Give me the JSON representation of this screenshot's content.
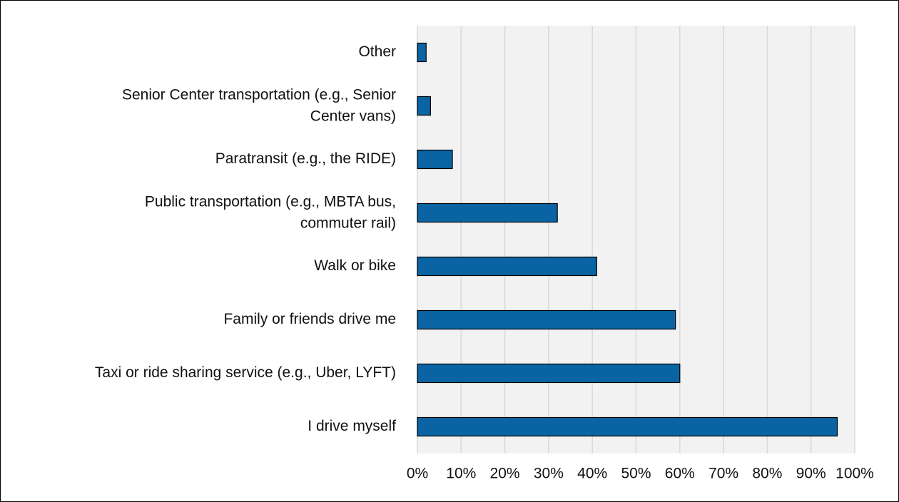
{
  "chart_data": {
    "type": "bar",
    "orientation": "horizontal",
    "categories": [
      "Other",
      [
        "Senior Center transportation (e.g., Senior",
        "Center vans)"
      ],
      "Paratransit (e.g., the RIDE)",
      [
        "Public transportation (e.g., MBTA bus,",
        "commuter rail)"
      ],
      "Walk or bike",
      "Family or friends drive me",
      "Taxi or ride sharing service (e.g., Uber, LYFT)",
      "I drive myself"
    ],
    "values": [
      2,
      3,
      8,
      32,
      41,
      59,
      60,
      96
    ],
    "color": "#0a64a4",
    "xlim": [
      0,
      100
    ],
    "xticks": [
      {
        "value": 0,
        "label": "0%"
      },
      {
        "value": 10,
        "label": "10%"
      },
      {
        "value": 20,
        "label": "20%"
      },
      {
        "value": 30,
        "label": "30%"
      },
      {
        "value": 40,
        "label": "40%"
      },
      {
        "value": 50,
        "label": "50%"
      },
      {
        "value": 60,
        "label": "60%"
      },
      {
        "value": 70,
        "label": "70%"
      },
      {
        "value": 80,
        "label": "80%"
      },
      {
        "value": 90,
        "label": "90%"
      },
      {
        "value": 100,
        "label": "100%"
      }
    ],
    "grid": true
  }
}
